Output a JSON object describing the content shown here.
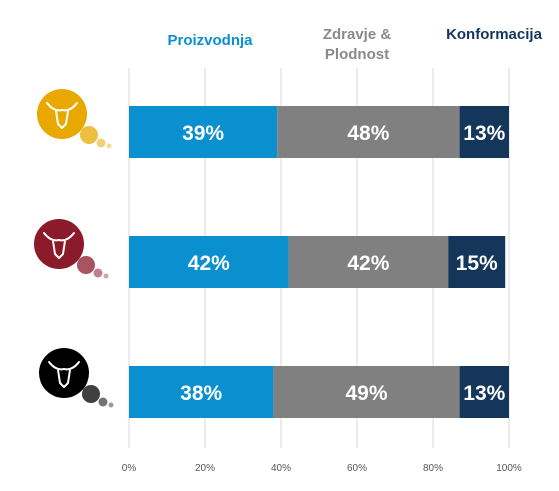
{
  "chart_data": {
    "type": "bar",
    "orientation": "horizontal",
    "stacked": true,
    "percent": true,
    "xlim": [
      0,
      100
    ],
    "x_ticks": [
      "0%",
      "20%",
      "40%",
      "60%",
      "80%",
      "100%"
    ],
    "grid": true,
    "legend_position": "top",
    "categories": [
      "bull-yellow",
      "bull-red",
      "bull-black"
    ],
    "category_icon_colors": [
      "#E8A800",
      "#8B1A2A",
      "#000000"
    ],
    "series": [
      {
        "name": "Proizvodnja",
        "color": "#0A8FCF",
        "label_color": "#0A8FCF",
        "values": [
          39,
          42,
          38
        ],
        "labels": [
          "39%",
          "42%",
          "38%"
        ]
      },
      {
        "name": "Zdravje & Plodnost",
        "color": "#808080",
        "label_color": "#8A8A8A",
        "values": [
          48,
          42,
          49
        ],
        "labels": [
          "48%",
          "42%",
          "49%"
        ]
      },
      {
        "name": "Konformacija",
        "color": "#13365A",
        "label_color": "#13365A",
        "values": [
          13,
          15,
          13
        ],
        "labels": [
          "13%",
          "15%",
          "13%"
        ]
      }
    ]
  }
}
